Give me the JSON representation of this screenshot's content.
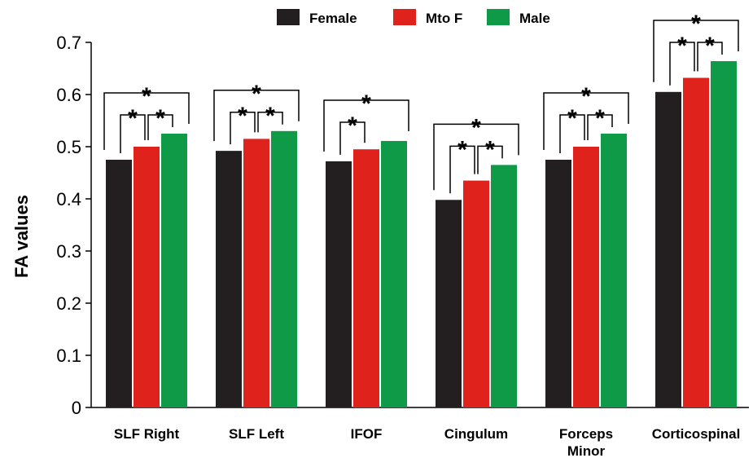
{
  "chart_data": {
    "type": "bar",
    "ylabel": "FA values",
    "xlabel": "",
    "ylim": [
      0,
      0.7
    ],
    "yticks": [
      "0",
      "0.1",
      "0.2",
      "0.3",
      "0.4",
      "0.5",
      "0.6",
      "0.7"
    ],
    "categories": [
      [
        "SLF Right"
      ],
      [
        "SLF Left"
      ],
      [
        "IFOF"
      ],
      [
        "Cingulum"
      ],
      [
        "Forceps",
        "Minor"
      ],
      [
        "Corticospinal"
      ]
    ],
    "series": [
      {
        "name": "Female",
        "color": "#231f20",
        "values": [
          0.475,
          0.492,
          0.472,
          0.398,
          0.475,
          0.605
        ]
      },
      {
        "name": "Mto F",
        "color": "#e0221c",
        "values": [
          0.5,
          0.515,
          0.495,
          0.435,
          0.5,
          0.632
        ]
      },
      {
        "name": "Male",
        "color": "#0f9a48",
        "values": [
          0.525,
          0.53,
          0.511,
          0.465,
          0.525,
          0.664
        ]
      }
    ],
    "significance_marker": "*",
    "significance": [
      {
        "category": 0,
        "pairs": [
          [
            0,
            1
          ],
          [
            1,
            2
          ],
          [
            0,
            2
          ]
        ]
      },
      {
        "category": 1,
        "pairs": [
          [
            0,
            1
          ],
          [
            1,
            2
          ],
          [
            0,
            2
          ]
        ]
      },
      {
        "category": 2,
        "pairs": [
          [
            0,
            1
          ],
          [
            0,
            2
          ]
        ]
      },
      {
        "category": 3,
        "pairs": [
          [
            0,
            1
          ],
          [
            1,
            2
          ],
          [
            0,
            2
          ]
        ]
      },
      {
        "category": 4,
        "pairs": [
          [
            0,
            1
          ],
          [
            1,
            2
          ],
          [
            0,
            2
          ]
        ]
      },
      {
        "category": 5,
        "pairs": [
          [
            0,
            1
          ],
          [
            1,
            2
          ],
          [
            0,
            2
          ]
        ]
      }
    ],
    "grid": false,
    "legend_position": "top-center"
  }
}
